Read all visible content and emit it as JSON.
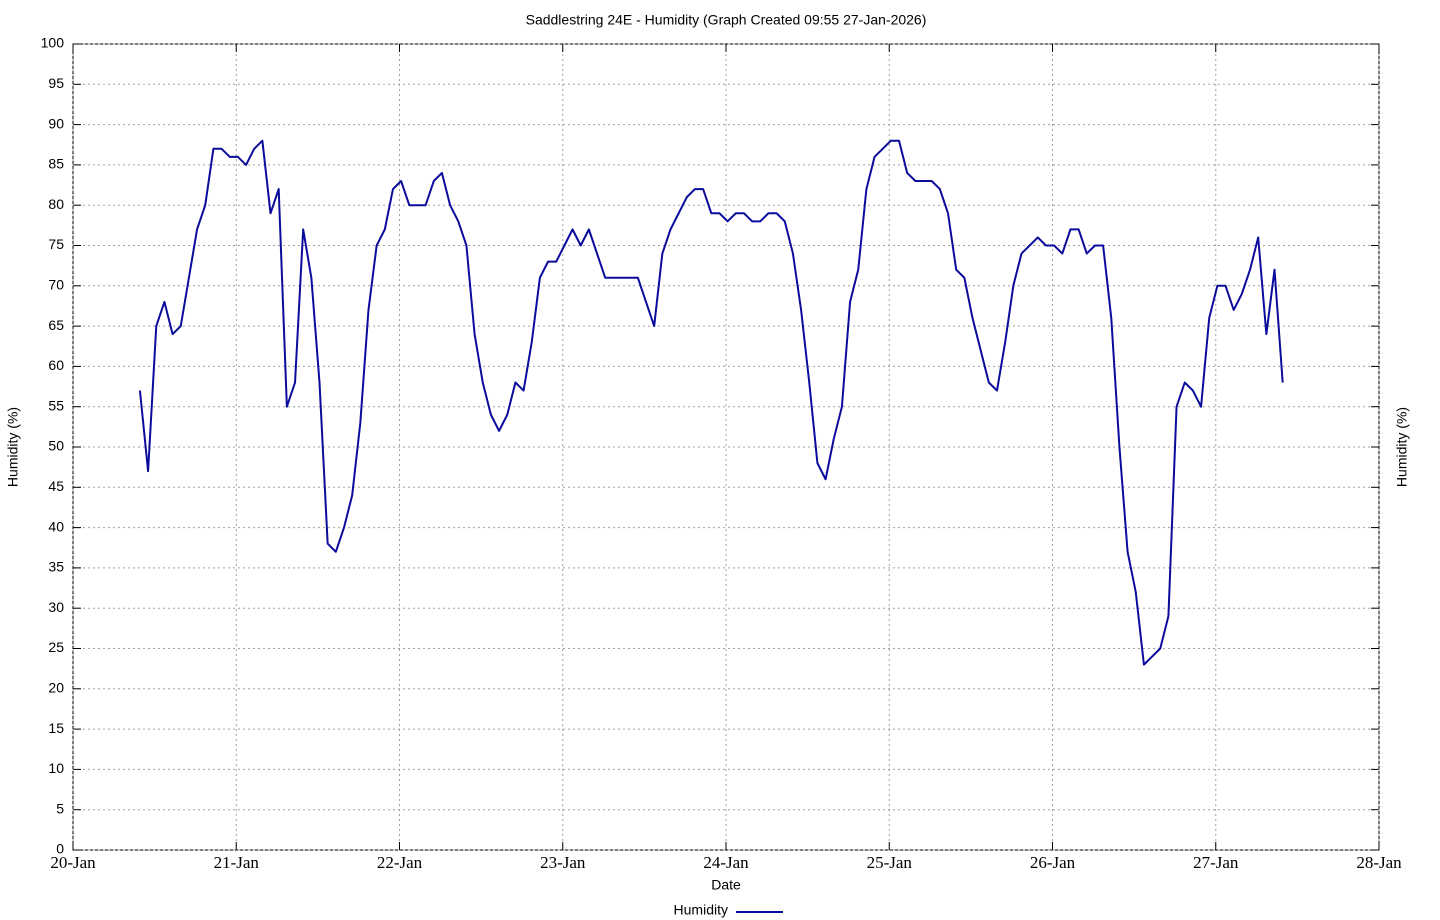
{
  "chart_data": {
    "type": "line",
    "title": "Saddlestring 24E - Humidity (Graph Created 09:55 27-Jan-2026)",
    "x_label": "Date",
    "y_label": "Humidity (%)",
    "y2_label": "Humidity (%)",
    "grid": true,
    "legend": "bottom",
    "xlim": [
      0,
      8
    ],
    "xticks": [
      {
        "value": 0,
        "label": "20-Jan"
      },
      {
        "value": 1,
        "label": "21-Jan"
      },
      {
        "value": 2,
        "label": "22-Jan"
      },
      {
        "value": 3,
        "label": "23-Jan"
      },
      {
        "value": 4,
        "label": "24-Jan"
      },
      {
        "value": 5,
        "label": "25-Jan"
      },
      {
        "value": 6,
        "label": "26-Jan"
      },
      {
        "value": 7,
        "label": "27-Jan"
      },
      {
        "value": 8,
        "label": "28-Jan"
      }
    ],
    "ylim": [
      0,
      100
    ],
    "yticks": [
      0,
      5,
      10,
      15,
      20,
      25,
      30,
      35,
      40,
      45,
      50,
      55,
      60,
      65,
      70,
      75,
      80,
      85,
      90,
      95,
      100
    ],
    "x": [
      0.41,
      0.46,
      0.51,
      0.56,
      0.61,
      0.66,
      0.71,
      0.76,
      0.81,
      0.86,
      0.91,
      0.96,
      1.01,
      1.06,
      1.11,
      1.16,
      1.21,
      1.26,
      1.31,
      1.36,
      1.41,
      1.46,
      1.51,
      1.56,
      1.61,
      1.66,
      1.71,
      1.76,
      1.81,
      1.86,
      1.91,
      1.96,
      2.01,
      2.06,
      2.11,
      2.16,
      2.21,
      2.26,
      2.31,
      2.36,
      2.41,
      2.46,
      2.51,
      2.56,
      2.61,
      2.66,
      2.71,
      2.76,
      2.81,
      2.86,
      2.91,
      2.96,
      3.01,
      3.06,
      3.11,
      3.16,
      3.21,
      3.26,
      3.31,
      3.36,
      3.41,
      3.46,
      3.51,
      3.56,
      3.61,
      3.66,
      3.71,
      3.76,
      3.81,
      3.86,
      3.91,
      3.96,
      4.01,
      4.06,
      4.11,
      4.16,
      4.21,
      4.26,
      4.31,
      4.36,
      4.41,
      4.46,
      4.51,
      4.56,
      4.61,
      4.66,
      4.71,
      4.76,
      4.81,
      4.86,
      4.91,
      4.96,
      5.01,
      5.06,
      5.11,
      5.16,
      5.21,
      5.26,
      5.31,
      5.36,
      5.41,
      5.46,
      5.51,
      5.56,
      5.61,
      5.66,
      5.71,
      5.76,
      5.81,
      5.86,
      5.91,
      5.96,
      6.01,
      6.06,
      6.11,
      6.16,
      6.21,
      6.26,
      6.31,
      6.36,
      6.41,
      6.46,
      6.51,
      6.56,
      6.61,
      6.66,
      6.71,
      6.76,
      6.81,
      6.86,
      6.91,
      6.96,
      7.01,
      7.06,
      7.11,
      7.16,
      7.21,
      7.26,
      7.31,
      7.36,
      7.41
    ],
    "series": [
      {
        "name": "Humidity",
        "color": "#0b0b9c",
        "values": [
          57,
          47,
          65,
          68,
          64,
          65,
          71,
          77,
          80,
          87,
          87,
          86,
          86,
          85,
          87,
          88,
          79,
          82,
          55,
          58,
          77,
          71,
          58,
          38,
          37,
          40,
          44,
          53,
          67,
          75,
          77,
          82,
          83,
          80,
          80,
          80,
          83,
          84,
          80,
          78,
          75,
          64,
          58,
          54,
          52,
          54,
          58,
          57,
          63,
          71,
          73,
          73,
          75,
          77,
          75,
          77,
          74,
          71,
          71,
          71,
          71,
          71,
          68,
          65,
          74,
          77,
          79,
          81,
          82,
          82,
          79,
          79,
          78,
          79,
          79,
          78,
          78,
          79,
          79,
          78,
          74,
          67,
          58,
          48,
          46,
          51,
          55,
          68,
          72,
          82,
          86,
          87,
          88,
          88,
          84,
          83,
          83,
          83,
          82,
          79,
          72,
          71,
          66,
          62,
          58,
          57,
          63,
          70,
          74,
          75,
          76,
          75,
          75,
          74,
          77,
          77,
          74,
          75,
          75,
          66,
          50,
          37,
          32,
          23,
          24,
          25,
          29,
          55,
          58,
          57,
          55,
          66,
          70,
          70,
          67,
          69,
          72,
          76,
          64,
          72,
          58
        ]
      }
    ]
  }
}
